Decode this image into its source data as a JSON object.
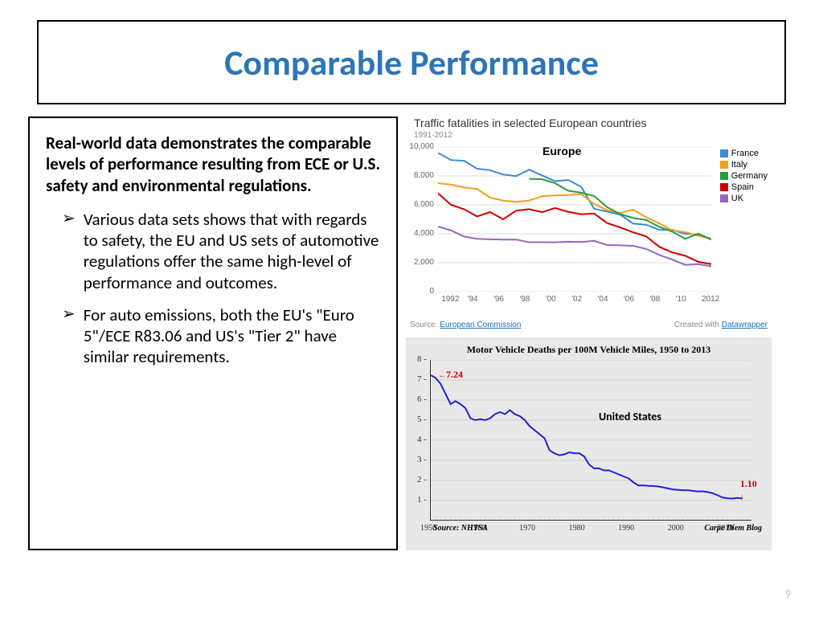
{
  "title": "Comparable Performance",
  "title_color": "#2e75b6",
  "page_number": "9",
  "intro": "Real-world data demonstrates the comparable levels of performance resulting from ECE or U.S. safety and environmental regulations.",
  "bullets": [
    "Various data sets shows that with regards to safety, the EU and US sets of automotive regulations offer the same high-level of performance and outcomes.",
    "For auto emissions, both the EU's \"Euro 5\"/ECE R83.06 and US's \"Tier 2\" have similar requirements."
  ],
  "bullet_marker": "➢",
  "chart1": {
    "title": "Traffic fatalities in selected European countries",
    "subtitle": "1991-2012",
    "region_label": "Europe",
    "source_prefix": "Source: ",
    "source_link": "European Commission",
    "credit_prefix": "Created with ",
    "credit_link": "Datawrapper",
    "ymin": 0,
    "ymax": 10000,
    "ytick_step": 2000,
    "xyears": [
      1992,
      1994,
      1996,
      1998,
      2000,
      2002,
      2004,
      2006,
      2008,
      2010,
      2012
    ],
    "xlabels": [
      "1992",
      "'94",
      "'96",
      "'98",
      "'00",
      "'02",
      "'04",
      "'06",
      "'08",
      "'10",
      "2012"
    ],
    "series": [
      {
        "name": "France",
        "color": "#3b8ad9",
        "data": [
          [
            1991,
            9600
          ],
          [
            1992,
            9100
          ],
          [
            1993,
            9050
          ],
          [
            1994,
            8500
          ],
          [
            1995,
            8400
          ],
          [
            1996,
            8100
          ],
          [
            1997,
            7990
          ],
          [
            1998,
            8430
          ],
          [
            1999,
            8030
          ],
          [
            2000,
            7640
          ],
          [
            2001,
            7720
          ],
          [
            2002,
            7250
          ],
          [
            2003,
            5730
          ],
          [
            2004,
            5530
          ],
          [
            2005,
            5320
          ],
          [
            2006,
            4710
          ],
          [
            2007,
            4620
          ],
          [
            2008,
            4280
          ],
          [
            2009,
            4270
          ],
          [
            2010,
            3990
          ],
          [
            2011,
            3960
          ],
          [
            2012,
            3650
          ]
        ]
      },
      {
        "name": "Italy",
        "color": "#f89c1c",
        "data": [
          [
            1991,
            7500
          ],
          [
            1992,
            7400
          ],
          [
            1993,
            7200
          ],
          [
            1994,
            7100
          ],
          [
            1995,
            6500
          ],
          [
            1996,
            6300
          ],
          [
            1997,
            6200
          ],
          [
            1998,
            6300
          ],
          [
            1999,
            6600
          ],
          [
            2000,
            6650
          ],
          [
            2001,
            6690
          ],
          [
            2002,
            6740
          ],
          [
            2003,
            6060
          ],
          [
            2004,
            5630
          ],
          [
            2005,
            5430
          ],
          [
            2006,
            5670
          ],
          [
            2007,
            5130
          ],
          [
            2008,
            4720
          ],
          [
            2009,
            4240
          ],
          [
            2010,
            4110
          ],
          [
            2011,
            3860
          ],
          [
            2012,
            3650
          ]
        ]
      },
      {
        "name": "Germany",
        "color": "#2e9a3f",
        "data": [
          [
            1998,
            7800
          ],
          [
            1999,
            7770
          ],
          [
            2000,
            7500
          ],
          [
            2001,
            6980
          ],
          [
            2002,
            6840
          ],
          [
            2003,
            6610
          ],
          [
            2004,
            5840
          ],
          [
            2005,
            5360
          ],
          [
            2006,
            5090
          ],
          [
            2007,
            4950
          ],
          [
            2008,
            4480
          ],
          [
            2009,
            4150
          ],
          [
            2010,
            3650
          ],
          [
            2011,
            4010
          ],
          [
            2012,
            3600
          ]
        ]
      },
      {
        "name": "Spain",
        "color": "#cc0000",
        "data": [
          [
            1991,
            6800
          ],
          [
            1992,
            6000
          ],
          [
            1993,
            5700
          ],
          [
            1994,
            5200
          ],
          [
            1995,
            5500
          ],
          [
            1996,
            5000
          ],
          [
            1997,
            5600
          ],
          [
            1998,
            5700
          ],
          [
            1999,
            5500
          ],
          [
            2000,
            5780
          ],
          [
            2001,
            5520
          ],
          [
            2002,
            5350
          ],
          [
            2003,
            5400
          ],
          [
            2004,
            4740
          ],
          [
            2005,
            4440
          ],
          [
            2006,
            4100
          ],
          [
            2007,
            3820
          ],
          [
            2008,
            3100
          ],
          [
            2009,
            2710
          ],
          [
            2010,
            2480
          ],
          [
            2011,
            2060
          ],
          [
            2012,
            1900
          ]
        ]
      },
      {
        "name": "UK",
        "color": "#9467bd",
        "data": [
          [
            1991,
            4500
          ],
          [
            1992,
            4230
          ],
          [
            1993,
            3810
          ],
          [
            1994,
            3650
          ],
          [
            1995,
            3620
          ],
          [
            1996,
            3600
          ],
          [
            1997,
            3600
          ],
          [
            1998,
            3420
          ],
          [
            1999,
            3420
          ],
          [
            2000,
            3410
          ],
          [
            2001,
            3450
          ],
          [
            2002,
            3430
          ],
          [
            2003,
            3510
          ],
          [
            2004,
            3220
          ],
          [
            2005,
            3200
          ],
          [
            2006,
            3170
          ],
          [
            2007,
            2950
          ],
          [
            2008,
            2540
          ],
          [
            2009,
            2220
          ],
          [
            2010,
            1850
          ],
          [
            2011,
            1900
          ],
          [
            2012,
            1750
          ]
        ]
      }
    ]
  },
  "chart2": {
    "title": "Motor Vehicle Deaths per 100M Vehicle Miles, 1950 to 2013",
    "region_label": "United States",
    "source": "Source: NHTSA",
    "blog": "Carpe Diem Blog",
    "line_color": "#2020d0",
    "annot_color": "#cc0000",
    "ymin": 0,
    "ymax": 8,
    "ytick_step": 1,
    "xmin": 1950,
    "xmax": 2015,
    "xlabels": [
      1950,
      1960,
      1970,
      1980,
      1990,
      2000,
      2010
    ],
    "start_annot": {
      "year": 1950,
      "value": 7.24,
      "label": "7.24"
    },
    "end_annot": {
      "year": 2013,
      "value": 1.1,
      "label": "1.10"
    },
    "data": [
      [
        1950,
        7.24
      ],
      [
        1951,
        7.1
      ],
      [
        1952,
        6.8
      ],
      [
        1953,
        6.3
      ],
      [
        1954,
        5.8
      ],
      [
        1955,
        5.95
      ],
      [
        1956,
        5.8
      ],
      [
        1957,
        5.6
      ],
      [
        1958,
        5.1
      ],
      [
        1959,
        5.0
      ],
      [
        1960,
        5.05
      ],
      [
        1961,
        5.0
      ],
      [
        1962,
        5.1
      ],
      [
        1963,
        5.3
      ],
      [
        1964,
        5.4
      ],
      [
        1965,
        5.3
      ],
      [
        1966,
        5.5
      ],
      [
        1967,
        5.3
      ],
      [
        1968,
        5.2
      ],
      [
        1969,
        5.0
      ],
      [
        1970,
        4.7
      ],
      [
        1971,
        4.5
      ],
      [
        1972,
        4.3
      ],
      [
        1973,
        4.1
      ],
      [
        1974,
        3.5
      ],
      [
        1975,
        3.35
      ],
      [
        1976,
        3.25
      ],
      [
        1977,
        3.3
      ],
      [
        1978,
        3.4
      ],
      [
        1979,
        3.35
      ],
      [
        1980,
        3.35
      ],
      [
        1981,
        3.2
      ],
      [
        1982,
        2.8
      ],
      [
        1983,
        2.6
      ],
      [
        1984,
        2.6
      ],
      [
        1985,
        2.5
      ],
      [
        1986,
        2.5
      ],
      [
        1987,
        2.4
      ],
      [
        1988,
        2.3
      ],
      [
        1989,
        2.2
      ],
      [
        1990,
        2.1
      ],
      [
        1991,
        1.9
      ],
      [
        1992,
        1.75
      ],
      [
        1993,
        1.75
      ],
      [
        1994,
        1.73
      ],
      [
        1995,
        1.72
      ],
      [
        1996,
        1.7
      ],
      [
        1997,
        1.65
      ],
      [
        1998,
        1.6
      ],
      [
        1999,
        1.55
      ],
      [
        2000,
        1.53
      ],
      [
        2001,
        1.51
      ],
      [
        2002,
        1.51
      ],
      [
        2003,
        1.48
      ],
      [
        2004,
        1.45
      ],
      [
        2005,
        1.46
      ],
      [
        2006,
        1.42
      ],
      [
        2007,
        1.36
      ],
      [
        2008,
        1.26
      ],
      [
        2009,
        1.15
      ],
      [
        2010,
        1.11
      ],
      [
        2011,
        1.1
      ],
      [
        2012,
        1.13
      ],
      [
        2013,
        1.1
      ]
    ]
  }
}
